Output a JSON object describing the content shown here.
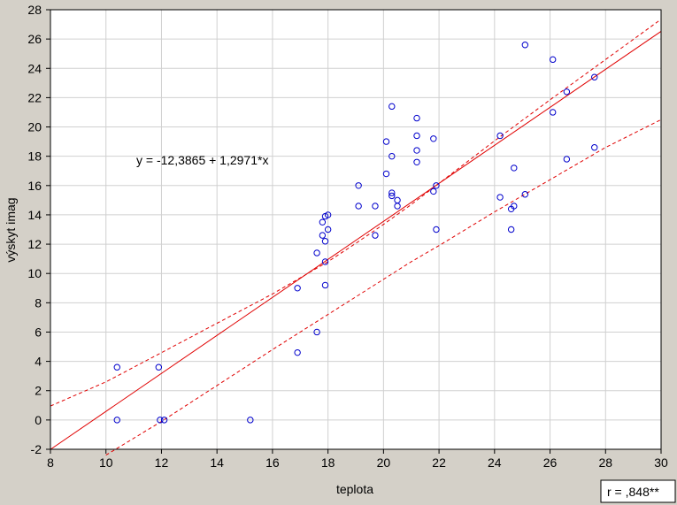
{
  "chart_data": {
    "type": "scatter",
    "title": "",
    "xlabel": "teplota",
    "ylabel": "výskyt imag",
    "xlim": [
      8,
      30
    ],
    "ylim": [
      -2,
      28
    ],
    "xticks": [
      "8",
      "10",
      "12",
      "14",
      "16",
      "18",
      "20",
      "22",
      "24",
      "26",
      "28",
      "30"
    ],
    "yticks": [
      "-2",
      "0",
      "2",
      "4",
      "6",
      "8",
      "10",
      "12",
      "14",
      "16",
      "18",
      "20",
      "22",
      "24",
      "26",
      "28"
    ],
    "grid": true,
    "equation_text": "y = -12,3865 + 1,2971*x",
    "correlation_text": "r = ,848**",
    "regression": {
      "intercept": -12.3865,
      "slope": 1.2971
    },
    "confidence_band": {
      "upper": [
        [
          8,
          0.95
        ],
        [
          10,
          2.6
        ],
        [
          12,
          4.6
        ],
        [
          14,
          6.6
        ],
        [
          16,
          8.6
        ],
        [
          18,
          10.8
        ],
        [
          19,
          12.05
        ],
        [
          20,
          13.35
        ],
        [
          21,
          14.7
        ],
        [
          22,
          16.15
        ],
        [
          24,
          19.05
        ],
        [
          26,
          21.85
        ],
        [
          28,
          24.6
        ],
        [
          30,
          27.35
        ]
      ],
      "lower": [
        [
          10,
          -2.4
        ],
        [
          12,
          -0.1
        ],
        [
          14,
          2.35
        ],
        [
          16,
          4.8
        ],
        [
          18,
          7.2
        ],
        [
          19,
          8.4
        ],
        [
          20,
          9.6
        ],
        [
          21,
          10.8
        ],
        [
          22,
          11.9
        ],
        [
          24,
          14.2
        ],
        [
          26,
          16.4
        ],
        [
          28,
          18.6
        ],
        [
          30,
          20.5
        ]
      ]
    },
    "series": [
      {
        "points": [
          [
            10.4,
            3.6
          ],
          [
            10.4,
            0
          ],
          [
            11.9,
            3.6
          ],
          [
            11.95,
            0
          ],
          [
            12.1,
            0
          ],
          [
            15.2,
            0
          ],
          [
            16.9,
            4.6
          ],
          [
            16.9,
            9
          ],
          [
            17.6,
            6
          ],
          [
            17.6,
            11.4
          ],
          [
            17.8,
            13.5
          ],
          [
            17.8,
            12.6
          ],
          [
            17.9,
            12.2
          ],
          [
            17.9,
            13.9
          ],
          [
            17.9,
            10.8
          ],
          [
            17.9,
            9.2
          ],
          [
            18.0,
            14.0
          ],
          [
            18.0,
            13.0
          ],
          [
            19.1,
            16.0
          ],
          [
            19.1,
            14.6
          ],
          [
            19.7,
            14.6
          ],
          [
            19.7,
            12.6
          ],
          [
            20.1,
            19.0
          ],
          [
            20.1,
            16.8
          ],
          [
            20.3,
            21.4
          ],
          [
            20.3,
            18.0
          ],
          [
            20.3,
            15.5
          ],
          [
            20.3,
            15.3
          ],
          [
            20.5,
            15.0
          ],
          [
            20.5,
            14.6
          ],
          [
            21.2,
            20.6
          ],
          [
            21.2,
            19.4
          ],
          [
            21.2,
            18.4
          ],
          [
            21.2,
            17.6
          ],
          [
            21.8,
            19.2
          ],
          [
            21.8,
            15.6
          ],
          [
            21.9,
            16.0
          ],
          [
            21.9,
            13.0
          ],
          [
            24.2,
            19.4
          ],
          [
            24.2,
            15.2
          ],
          [
            24.6,
            14.4
          ],
          [
            24.6,
            13.0
          ],
          [
            24.7,
            17.2
          ],
          [
            24.7,
            14.6
          ],
          [
            25.1,
            25.6
          ],
          [
            25.1,
            15.4
          ],
          [
            26.1,
            24.6
          ],
          [
            26.1,
            21.0
          ],
          [
            26.6,
            22.4
          ],
          [
            26.6,
            17.8
          ],
          [
            27.6,
            23.4
          ],
          [
            27.6,
            18.6
          ]
        ]
      }
    ],
    "colors": {
      "points": "#0000cc",
      "fit_line": "#e00000",
      "band": "#e00000",
      "grid": "#d0d0d0",
      "plot_background": "#ffffff",
      "page_background": "#d4d0c8"
    }
  }
}
